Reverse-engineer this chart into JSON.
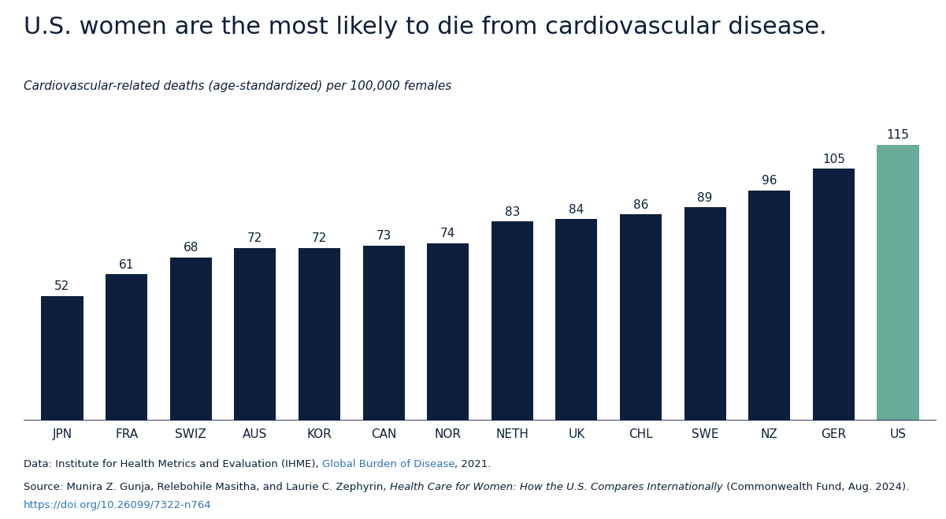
{
  "categories": [
    "JPN",
    "FRA",
    "SWIZ",
    "AUS",
    "KOR",
    "CAN",
    "NOR",
    "NETH",
    "UK",
    "CHL",
    "SWE",
    "NZ",
    "GER",
    "US"
  ],
  "values": [
    52,
    61,
    68,
    72,
    72,
    73,
    74,
    83,
    84,
    86,
    89,
    96,
    105,
    115
  ],
  "bar_colors": [
    "#0d1f3c",
    "#0d1f3c",
    "#0d1f3c",
    "#0d1f3c",
    "#0d1f3c",
    "#0d1f3c",
    "#0d1f3c",
    "#0d1f3c",
    "#0d1f3c",
    "#0d1f3c",
    "#0d1f3c",
    "#0d1f3c",
    "#0d1f3c",
    "#6aab9c"
  ],
  "title": "U.S. women are the most likely to die from cardiovascular disease.",
  "subtitle": "Cardiovascular-related deaths (age-standardized) per 100,000 females",
  "ylim": [
    0,
    130
  ],
  "background_color": "#ffffff",
  "title_fontsize": 22,
  "subtitle_fontsize": 11,
  "bar_label_fontsize": 11,
  "xtick_fontsize": 11,
  "footer_prefix_1": "Data: Institute for Health Metrics and Evaluation (IHME), ",
  "footer_link_1": "Global Burden of Disease",
  "footer_suffix_1": ", 2021.",
  "footer_prefix_2": "Source: Munira Z. Gunja, Relebohile Masitha, and Laurie C. Zephyrin, ",
  "footer_italic_2": "Health Care for Women: How the U.S. Compares Internationally",
  "footer_suffix_2": " (Commonwealth Fund, Aug. 2024).",
  "footer_link_2": "https://doi.org/10.26099/7322-n764",
  "link_color": "#2E75B6",
  "dark_navy": "#0d1f3c",
  "teal": "#6aab9c",
  "footer_fontsize": 9.5
}
